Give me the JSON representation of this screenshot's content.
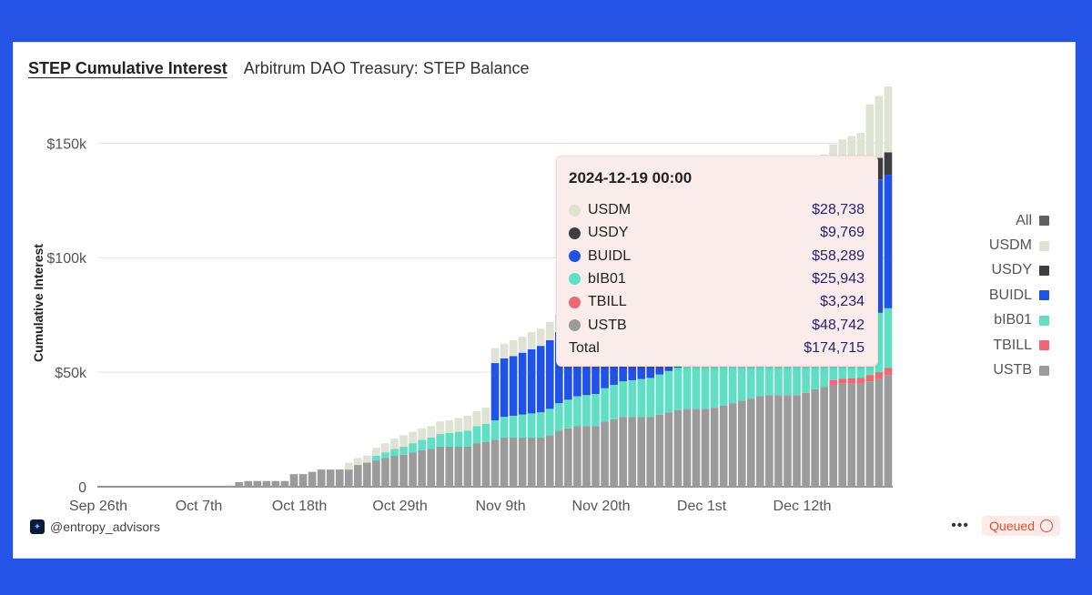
{
  "header": {
    "active_tab": "STEP Cumulative Interest",
    "tab2": "Arbitrum DAO Treasury: STEP Balance"
  },
  "footer": {
    "handle": "@entropy_advisors",
    "more": "•••",
    "status": "Queued"
  },
  "legend": [
    {
      "label": "All",
      "color": "#616161"
    },
    {
      "label": "USDM",
      "color": "#dfe3d4"
    },
    {
      "label": "USDY",
      "color": "#3e3e3e"
    },
    {
      "label": "BUIDL",
      "color": "#2052e3"
    },
    {
      "label": "bIB01",
      "color": "#5fe0c5"
    },
    {
      "label": "TBILL",
      "color": "#e96a72"
    },
    {
      "label": "USTB",
      "color": "#9b9b9b"
    }
  ],
  "tooltip": {
    "title": "2024-12-19 00:00",
    "rows": [
      {
        "name": "USDM",
        "value": "$28,738",
        "color": "#dfe3d4"
      },
      {
        "name": "USDY",
        "value": "$9,769",
        "color": "#3e3e3e"
      },
      {
        "name": "BUIDL",
        "value": "$58,289",
        "color": "#2052e3"
      },
      {
        "name": "bIB01",
        "value": "$25,943",
        "color": "#5fe0c5"
      },
      {
        "name": "TBILL",
        "value": "$3,234",
        "color": "#e96a72"
      },
      {
        "name": "USTB",
        "value": "$48,742",
        "color": "#9b9b9b"
      }
    ],
    "total_label": "Total",
    "total_value": "$174,715"
  },
  "chart_data": {
    "type": "bar",
    "stacked": true,
    "ylabel": "Cumulative Interest",
    "ylim": [
      0,
      170000
    ],
    "yticks": [
      0,
      50000,
      100000,
      150000
    ],
    "ytick_labels": [
      "0",
      "$50k",
      "$100k",
      "$150k"
    ],
    "xtick_labels": [
      "Sep 26th",
      "Oct 7th",
      "Oct 18th",
      "Oct 29th",
      "Nov 9th",
      "Nov 20th",
      "Dec 1st",
      "Dec 12th"
    ],
    "xtick_day_index": [
      0,
      11,
      22,
      33,
      44,
      55,
      66,
      77
    ],
    "series_order": [
      "USTB",
      "TBILL",
      "bIB01",
      "BUIDL",
      "USDY",
      "USDM"
    ],
    "series": [
      {
        "name": "USTB",
        "color": "#9b9b9b",
        "values": [
          0,
          0,
          0,
          0,
          0,
          0,
          0,
          0,
          0,
          0,
          0,
          0,
          0,
          0,
          500,
          2000,
          2500,
          2500,
          2500,
          2500,
          2500,
          5500,
          5500,
          6500,
          7500,
          7500,
          7500,
          7500,
          9500,
          10500,
          11500,
          12500,
          13500,
          14000,
          15000,
          16000,
          16500,
          17500,
          17500,
          17500,
          17500,
          19000,
          19500,
          20500,
          21500,
          21500,
          21500,
          21500,
          21500,
          22500,
          24500,
          25500,
          26500,
          26500,
          26500,
          28500,
          29500,
          30500,
          30500,
          30500,
          30500,
          31500,
          32500,
          33500,
          34000,
          34000,
          34000,
          34500,
          35500,
          36500,
          37500,
          38500,
          39500,
          40000,
          40000,
          40000,
          40000,
          41000,
          42500,
          43500,
          44500,
          45000,
          45000,
          45000,
          46000,
          47000,
          48742
        ]
      },
      {
        "name": "TBILL",
        "color": "#e96a72",
        "values": [
          0,
          0,
          0,
          0,
          0,
          0,
          0,
          0,
          0,
          0,
          0,
          0,
          0,
          0,
          0,
          0,
          0,
          0,
          0,
          0,
          0,
          0,
          0,
          0,
          0,
          0,
          0,
          0,
          0,
          0,
          0,
          0,
          0,
          0,
          0,
          0,
          0,
          0,
          0,
          0,
          0,
          0,
          0,
          0,
          0,
          0,
          0,
          0,
          0,
          0,
          0,
          0,
          0,
          0,
          0,
          0,
          0,
          0,
          0,
          0,
          0,
          0,
          0,
          0,
          0,
          0,
          0,
          0,
          0,
          0,
          0,
          0,
          0,
          0,
          0,
          0,
          0,
          0,
          0,
          0,
          2000,
          2200,
          2400,
          2600,
          2800,
          3000,
          3234
        ]
      },
      {
        "name": "bIB01",
        "color": "#5fe0c5",
        "values": [
          0,
          0,
          0,
          0,
          0,
          0,
          0,
          0,
          0,
          0,
          0,
          0,
          0,
          0,
          0,
          0,
          0,
          0,
          0,
          0,
          0,
          0,
          0,
          0,
          0,
          0,
          0,
          0,
          0,
          0,
          2000,
          2500,
          3000,
          3500,
          4000,
          4500,
          5000,
          5500,
          6000,
          6500,
          7000,
          7500,
          8000,
          8500,
          9000,
          9500,
          10000,
          10500,
          11000,
          11500,
          12000,
          12500,
          13000,
          13500,
          14000,
          14500,
          15000,
          15500,
          16000,
          16500,
          17000,
          17500,
          18000,
          18500,
          19000,
          19500,
          20000,
          20500,
          21000,
          21500,
          22000,
          22500,
          23000,
          23500,
          24000,
          24200,
          24400,
          24600,
          24800,
          25000,
          25200,
          25400,
          25600,
          25700,
          25800,
          25900,
          25943
        ]
      },
      {
        "name": "BUIDL",
        "color": "#2052e3",
        "values": [
          0,
          0,
          0,
          0,
          0,
          0,
          0,
          0,
          0,
          0,
          0,
          0,
          0,
          0,
          0,
          0,
          0,
          0,
          0,
          0,
          0,
          0,
          0,
          0,
          0,
          0,
          0,
          0,
          0,
          0,
          0,
          0,
          0,
          0,
          0,
          0,
          0,
          0,
          0,
          0,
          0,
          0,
          0,
          25000,
          25500,
          26000,
          27000,
          28000,
          29000,
          30000,
          31000,
          32000,
          33000,
          34000,
          35000,
          36000,
          37000,
          38000,
          39000,
          40000,
          41000,
          42000,
          43000,
          44000,
          45000,
          46000,
          47000,
          48000,
          49000,
          50000,
          51000,
          52000,
          53000,
          54000,
          55000,
          55500,
          56000,
          56500,
          57000,
          57500,
          57800,
          58000,
          58100,
          58200,
          58250,
          58270,
          58289
        ]
      },
      {
        "name": "USDY",
        "color": "#3e3e3e",
        "values": [
          0,
          0,
          0,
          0,
          0,
          0,
          0,
          0,
          0,
          0,
          0,
          0,
          0,
          0,
          0,
          0,
          0,
          0,
          0,
          0,
          0,
          0,
          0,
          0,
          0,
          0,
          0,
          0,
          0,
          0,
          0,
          0,
          0,
          0,
          0,
          0,
          0,
          0,
          0,
          0,
          0,
          0,
          0,
          0,
          0,
          0,
          0,
          0,
          0,
          0,
          0,
          0,
          0,
          0,
          0,
          0,
          0,
          0,
          0,
          0,
          0,
          0,
          0,
          0,
          0,
          0,
          0,
          0,
          0,
          0,
          0,
          0,
          0,
          0,
          0,
          0,
          0,
          0,
          0,
          0,
          0,
          0,
          0,
          0,
          9000,
          9400,
          9769
        ]
      },
      {
        "name": "USDM",
        "color": "#dfe3d4",
        "values": [
          0,
          0,
          0,
          0,
          0,
          0,
          0,
          0,
          0,
          0,
          0,
          0,
          0,
          0,
          0,
          0,
          0,
          0,
          0,
          0,
          0,
          0,
          0,
          0,
          0,
          0,
          0,
          3000,
          3000,
          3000,
          3500,
          4000,
          4500,
          5000,
          5000,
          5000,
          5000,
          5500,
          5500,
          6000,
          6500,
          6500,
          7000,
          6500,
          6500,
          7000,
          7000,
          7500,
          7500,
          8000,
          8000,
          8500,
          8500,
          9000,
          9000,
          9500,
          9500,
          10000,
          10000,
          10500,
          10500,
          11000,
          11000,
          11500,
          11500,
          12000,
          12000,
          12500,
          12500,
          13000,
          13000,
          13500,
          13500,
          14000,
          14500,
          15000,
          16000,
          17000,
          18000,
          19000,
          20000,
          21000,
          22000,
          23000,
          25000,
          27000,
          28738
        ]
      }
    ]
  }
}
